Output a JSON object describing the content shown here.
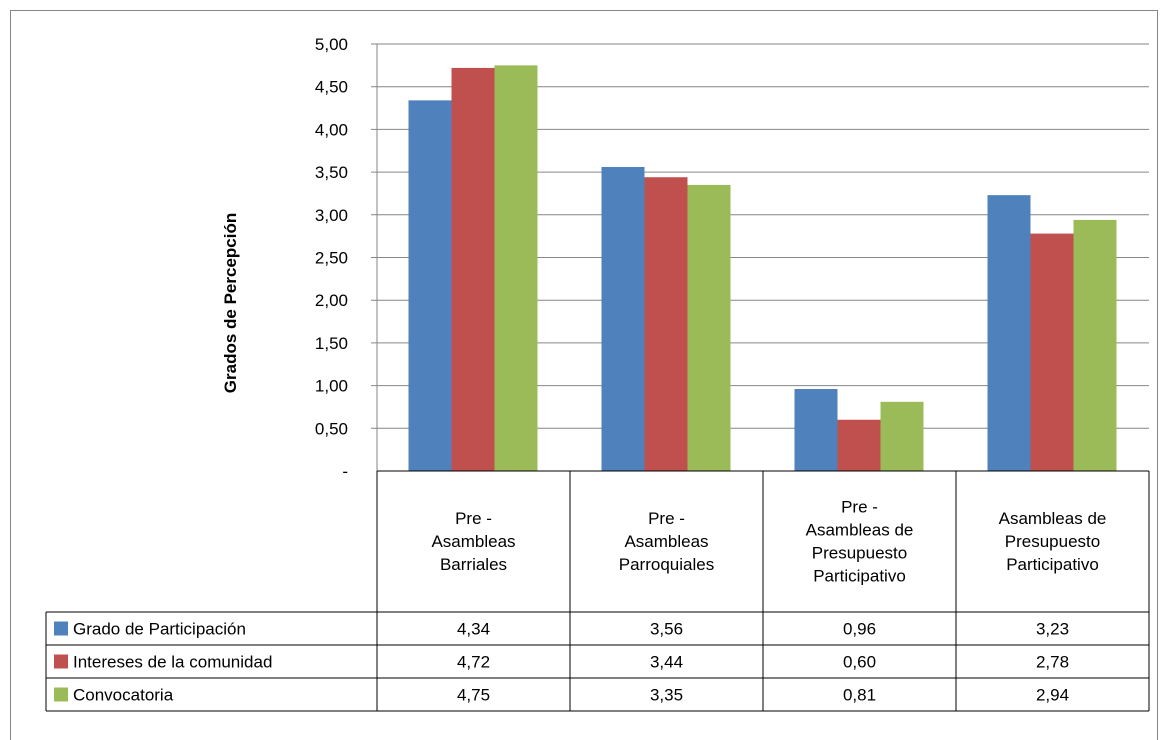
{
  "chart_data": {
    "type": "bar",
    "title": "",
    "xlabel": "",
    "ylabel": "Grados de Percepción",
    "ylim": [
      0,
      5
    ],
    "y_ticks": [
      "-",
      "0,50",
      "1,00",
      "1,50",
      "2,00",
      "2,50",
      "3,00",
      "3,50",
      "4,00",
      "4,50",
      "5,00"
    ],
    "grid": true,
    "legend": "data-table",
    "categories": [
      [
        "Pre -",
        "Asambleas",
        "Barriales"
      ],
      [
        "Pre -",
        "Asambleas",
        "Parroquiales"
      ],
      [
        "Pre -",
        "Asambleas de",
        "Presupuesto",
        "Participativo"
      ],
      [
        "Asambleas de",
        "Presupuesto",
        "Participativo"
      ]
    ],
    "series": [
      {
        "name": "Grado de Participación",
        "color": "#4F81BD",
        "values": [
          4.34,
          3.56,
          0.96,
          3.23
        ],
        "labels": [
          "4,34",
          "3,56",
          "0,96",
          "3,23"
        ]
      },
      {
        "name": "Intereses de la comunidad",
        "color": "#C0504D",
        "values": [
          4.72,
          3.44,
          0.6,
          2.78
        ],
        "labels": [
          "4,72",
          "3,44",
          "0,60",
          "2,78"
        ]
      },
      {
        "name": "Convocatoria",
        "color": "#9BBB59",
        "values": [
          4.75,
          3.35,
          0.81,
          2.94
        ],
        "labels": [
          "4,75",
          "3,35",
          "0,81",
          "2,94"
        ]
      }
    ]
  }
}
